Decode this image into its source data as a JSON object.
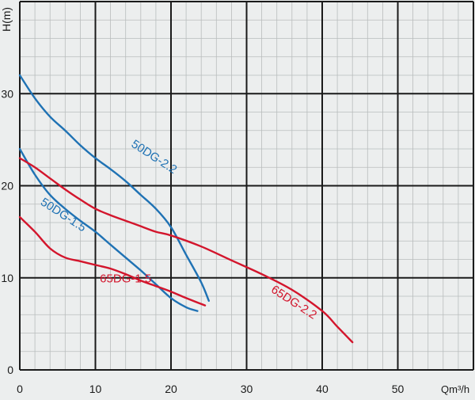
{
  "chart_data": {
    "type": "line",
    "xlabel": "Qm³/h",
    "ylabel": "H(m)",
    "xlim": [
      0,
      60
    ],
    "ylim": [
      0,
      40
    ],
    "x_ticks": [
      0,
      10,
      20,
      30,
      40,
      50
    ],
    "y_ticks": [
      0,
      10,
      20,
      30
    ],
    "grid": true,
    "series": [
      {
        "name": "50DG-2.2",
        "color": "#1f72b4",
        "points": [
          [
            0,
            32
          ],
          [
            2,
            29.5
          ],
          [
            4,
            27.5
          ],
          [
            6,
            26
          ],
          [
            8,
            24.4
          ],
          [
            10,
            23
          ],
          [
            12,
            21.8
          ],
          [
            14,
            20.5
          ],
          [
            16,
            19
          ],
          [
            18,
            17.5
          ],
          [
            20,
            15.5
          ],
          [
            22,
            12.5
          ],
          [
            24,
            9.5
          ],
          [
            25,
            7.5
          ]
        ]
      },
      {
        "name": "50DG-1.5",
        "color": "#1f72b4",
        "points": [
          [
            0,
            24
          ],
          [
            2,
            21.2
          ],
          [
            4,
            19
          ],
          [
            6,
            17.5
          ],
          [
            8,
            16.2
          ],
          [
            10,
            15
          ],
          [
            12,
            13.6
          ],
          [
            14,
            12.2
          ],
          [
            16,
            10.8
          ],
          [
            18,
            9.3
          ],
          [
            20,
            7.8
          ],
          [
            22,
            6.8
          ],
          [
            23.5,
            6.4
          ]
        ]
      },
      {
        "name": "65DG-2.2",
        "color": "#d3152c",
        "points": [
          [
            0,
            23
          ],
          [
            2,
            22
          ],
          [
            4,
            20.8
          ],
          [
            6,
            19.6
          ],
          [
            8,
            18.5
          ],
          [
            10,
            17.5
          ],
          [
            12,
            16.8
          ],
          [
            14,
            16.2
          ],
          [
            16,
            15.6
          ],
          [
            18,
            15
          ],
          [
            20,
            14.6
          ],
          [
            24,
            13.4
          ],
          [
            28,
            11.9
          ],
          [
            32,
            10.4
          ],
          [
            36,
            8.7
          ],
          [
            40,
            6.4
          ],
          [
            42,
            4.7
          ],
          [
            44,
            3
          ]
        ]
      },
      {
        "name": "65DG-1.5",
        "color": "#d3152c",
        "points": [
          [
            0,
            16.6
          ],
          [
            2,
            15
          ],
          [
            4,
            13.2
          ],
          [
            6,
            12.2
          ],
          [
            8,
            11.8
          ],
          [
            10,
            11.4
          ],
          [
            12,
            11
          ],
          [
            14,
            10.4
          ],
          [
            16,
            9.7
          ],
          [
            18,
            9.1
          ],
          [
            20,
            8.5
          ],
          [
            22,
            7.8
          ],
          [
            24.5,
            7
          ]
        ]
      }
    ],
    "annotations": [
      {
        "text": "50DG-2.2",
        "x": 17.5,
        "y": 22.8,
        "angle": 33,
        "color": "#1f72b4"
      },
      {
        "text": "50DG-1.5",
        "x": 5.5,
        "y": 16.5,
        "angle": 33,
        "color": "#1f72b4"
      },
      {
        "text": "65DG-1.5",
        "x": 14,
        "y": 9.5,
        "angle": 0,
        "color": "#d3152c"
      },
      {
        "text": "65DG-2.2",
        "x": 36,
        "y": 7.0,
        "angle": 33,
        "color": "#d3152c"
      }
    ]
  }
}
